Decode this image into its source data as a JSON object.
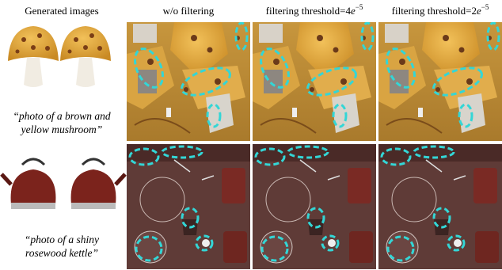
{
  "header": {
    "columns": [
      {
        "text": "Generated images"
      },
      {
        "text": "w/o filtering"
      },
      {
        "text": "filtering threshold=4",
        "var": "e",
        "exp": "−5"
      },
      {
        "text": "filtering threshold=2",
        "var": "e",
        "exp": "−5"
      }
    ]
  },
  "rows": [
    {
      "caption": [
        "“photo of a brown and",
        "yellow mushroom”"
      ]
    },
    {
      "caption": [
        "“photo of a shiny",
        "rosewood kettle”"
      ]
    }
  ]
}
